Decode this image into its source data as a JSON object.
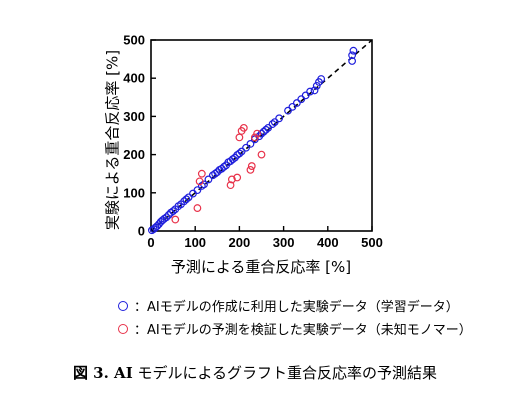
{
  "chart_data": {
    "type": "scatter",
    "xlabel": "予測による重合反応率 [%]",
    "ylabel": "実験による重合反応率 [%]",
    "xlim": [
      0,
      500
    ],
    "ylim": [
      0,
      500
    ],
    "xticks": [
      0,
      100,
      200,
      300,
      400,
      500
    ],
    "yticks": [
      0,
      100,
      200,
      300,
      400,
      500
    ],
    "grid": false,
    "reference_line": "y = x (dashed)",
    "series": [
      {
        "name": "AIモデルの作成に利用した実験データ（学習データ）",
        "color": "#1f1fdc",
        "marker": "open-circle",
        "points": [
          [
            2,
            2
          ],
          [
            6,
            5
          ],
          [
            10,
            9
          ],
          [
            14,
            13
          ],
          [
            18,
            18
          ],
          [
            22,
            24
          ],
          [
            26,
            28
          ],
          [
            30,
            32
          ],
          [
            35,
            36
          ],
          [
            40,
            42
          ],
          [
            45,
            48
          ],
          [
            50,
            52
          ],
          [
            55,
            57
          ],
          [
            62,
            65
          ],
          [
            68,
            70
          ],
          [
            75,
            78
          ],
          [
            80,
            83
          ],
          [
            85,
            88
          ],
          [
            95,
            98
          ],
          [
            105,
            107
          ],
          [
            115,
            118
          ],
          [
            120,
            122
          ],
          [
            130,
            135
          ],
          [
            140,
            146
          ],
          [
            145,
            150
          ],
          [
            150,
            154
          ],
          [
            155,
            160
          ],
          [
            160,
            163
          ],
          [
            165,
            168
          ],
          [
            170,
            172
          ],
          [
            175,
            180
          ],
          [
            180,
            183
          ],
          [
            185,
            188
          ],
          [
            190,
            192
          ],
          [
            195,
            199
          ],
          [
            200,
            203
          ],
          [
            205,
            208
          ],
          [
            215,
            218
          ],
          [
            225,
            228
          ],
          [
            235,
            240
          ],
          [
            245,
            248
          ],
          [
            250,
            255
          ],
          [
            255,
            260
          ],
          [
            260,
            265
          ],
          [
            265,
            270
          ],
          [
            275,
            280
          ],
          [
            280,
            285
          ],
          [
            290,
            295
          ],
          [
            310,
            315
          ],
          [
            320,
            325
          ],
          [
            330,
            335
          ],
          [
            340,
            345
          ],
          [
            350,
            355
          ],
          [
            360,
            365
          ],
          [
            370,
            368
          ],
          [
            375,
            380
          ],
          [
            380,
            390
          ],
          [
            385,
            398
          ],
          [
            455,
            445
          ],
          [
            455,
            460
          ],
          [
            458,
            472
          ]
        ]
      },
      {
        "name": "AIモデルの予測を検証した実験データ（未知モノマー）",
        "color": "#e8324a",
        "marker": "open-circle",
        "points": [
          [
            55,
            30
          ],
          [
            105,
            60
          ],
          [
            110,
            130
          ],
          [
            115,
            150
          ],
          [
            180,
            120
          ],
          [
            183,
            135
          ],
          [
            195,
            140
          ],
          [
            200,
            245
          ],
          [
            205,
            262
          ],
          [
            210,
            270
          ],
          [
            225,
            160
          ],
          [
            228,
            170
          ],
          [
            235,
            245
          ],
          [
            240,
            255
          ],
          [
            250,
            200
          ]
        ]
      }
    ]
  },
  "legend": {
    "item1_label": "：AIモデルの作成に利用した実験データ（学習データ）",
    "item2_label": "：AIモデルの予測を検証した実験データ（未知モノマー）"
  },
  "caption": {
    "prefix": "図 3. AI",
    "text": " モデルによるグラフト重合反応率の予測結果"
  },
  "colors": {
    "training": "#1f1fdc",
    "validation": "#e8324a",
    "axis": "#000000"
  }
}
